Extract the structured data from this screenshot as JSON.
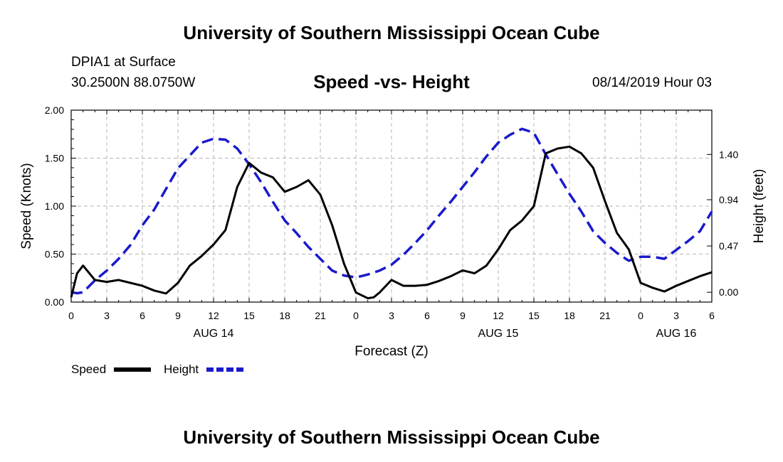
{
  "header": {
    "title": "University of Southern Mississippi Ocean Cube",
    "station": "DPIA1 at Surface",
    "coordinates": "30.2500N 88.0750W",
    "subtitle": "Speed -vs- Height",
    "datetime": "08/14/2019 Hour 03"
  },
  "footer": {
    "title": "University of Southern Mississippi Ocean Cube"
  },
  "colors": {
    "speed": "#000000",
    "height": "#1a1acc",
    "grid": "#b4b4b4"
  },
  "chart_data": {
    "type": "line",
    "title": "Speed -vs- Height",
    "xlabel": "Forecast (Z)",
    "ylabel": "Speed (Knots)",
    "y2label": "Height (feet)",
    "xlim": [
      0,
      54
    ],
    "ylim": [
      0,
      2.0
    ],
    "y2lim": [
      -0.1,
      1.85
    ],
    "grid": true,
    "legend": "bottom-left",
    "x_ticks": [
      0,
      3,
      6,
      9,
      12,
      15,
      18,
      21,
      24,
      27,
      30,
      33,
      36,
      39,
      42,
      45,
      48,
      51,
      54
    ],
    "x_tick_labels": [
      "0",
      "3",
      "6",
      "9",
      "12",
      "15",
      "18",
      "21",
      "0",
      "3",
      "6",
      "9",
      "12",
      "15",
      "18",
      "21",
      "0",
      "3",
      "6"
    ],
    "date_labels": [
      {
        "x": 12,
        "label": "AUG 14"
      },
      {
        "x": 36,
        "label": "AUG 15"
      },
      {
        "x": 51,
        "label": "AUG 16"
      }
    ],
    "y_ticks": [
      0,
      0.5,
      1.0,
      1.5,
      2.0
    ],
    "y_tick_labels": [
      "0.00",
      "0.50",
      "1.00",
      "1.50",
      "2.00"
    ],
    "y2_ticks": [
      0,
      0.47,
      0.94,
      1.4
    ],
    "y2_tick_labels": [
      "0.00",
      "0.47",
      "0.94",
      "1.40"
    ],
    "series": [
      {
        "name": "Speed",
        "axis": "left",
        "x": [
          0,
          0.5,
          1,
          2,
          3,
          4,
          5,
          6,
          7,
          8,
          9,
          10,
          11,
          12,
          13,
          14,
          15,
          16,
          17,
          18,
          19,
          20,
          21,
          22,
          23,
          24,
          25,
          25.5,
          26,
          27,
          28,
          29,
          30,
          31,
          32,
          33,
          34,
          35,
          36,
          37,
          38,
          39,
          40,
          41,
          42,
          43,
          44,
          45,
          46,
          47,
          48,
          49,
          50,
          51,
          52,
          53,
          54
        ],
        "values": [
          0.05,
          0.3,
          0.38,
          0.23,
          0.21,
          0.23,
          0.2,
          0.17,
          0.12,
          0.09,
          0.2,
          0.38,
          0.48,
          0.6,
          0.75,
          1.2,
          1.45,
          1.35,
          1.3,
          1.15,
          1.2,
          1.27,
          1.12,
          0.8,
          0.4,
          0.1,
          0.04,
          0.05,
          0.1,
          0.23,
          0.17,
          0.17,
          0.18,
          0.22,
          0.27,
          0.33,
          0.3,
          0.38,
          0.55,
          0.75,
          0.85,
          1.0,
          1.55,
          1.6,
          1.62,
          1.55,
          1.4,
          1.05,
          0.72,
          0.55,
          0.2,
          0.15,
          0.11,
          0.17,
          0.22,
          0.27,
          0.31
        ]
      },
      {
        "name": "Height",
        "axis": "right",
        "x": [
          0,
          0.5,
          1,
          2,
          3,
          4,
          5,
          6,
          7,
          8,
          9,
          10,
          11,
          12,
          13,
          14,
          15,
          16,
          17,
          18,
          19,
          20,
          21,
          22,
          23,
          24,
          25,
          26,
          27,
          28,
          29,
          30,
          31,
          32,
          33,
          34,
          35,
          36,
          37,
          38,
          39,
          40,
          41,
          42,
          43,
          44,
          45,
          46,
          47,
          48,
          49,
          50,
          51,
          52,
          53,
          54
        ],
        "values": [
          0.0,
          -0.01,
          0.0,
          0.12,
          0.22,
          0.34,
          0.48,
          0.68,
          0.84,
          1.05,
          1.26,
          1.39,
          1.52,
          1.56,
          1.55,
          1.46,
          1.3,
          1.12,
          0.92,
          0.73,
          0.6,
          0.46,
          0.34,
          0.22,
          0.17,
          0.15,
          0.18,
          0.22,
          0.28,
          0.38,
          0.5,
          0.63,
          0.78,
          0.92,
          1.07,
          1.22,
          1.38,
          1.52,
          1.6,
          1.66,
          1.62,
          1.4,
          1.2,
          1.0,
          0.82,
          0.62,
          0.5,
          0.4,
          0.32,
          0.36,
          0.36,
          0.34,
          0.43,
          0.52,
          0.62,
          0.82
        ]
      }
    ]
  },
  "legend": {
    "speed_label": "Speed",
    "height_label": "Height"
  }
}
